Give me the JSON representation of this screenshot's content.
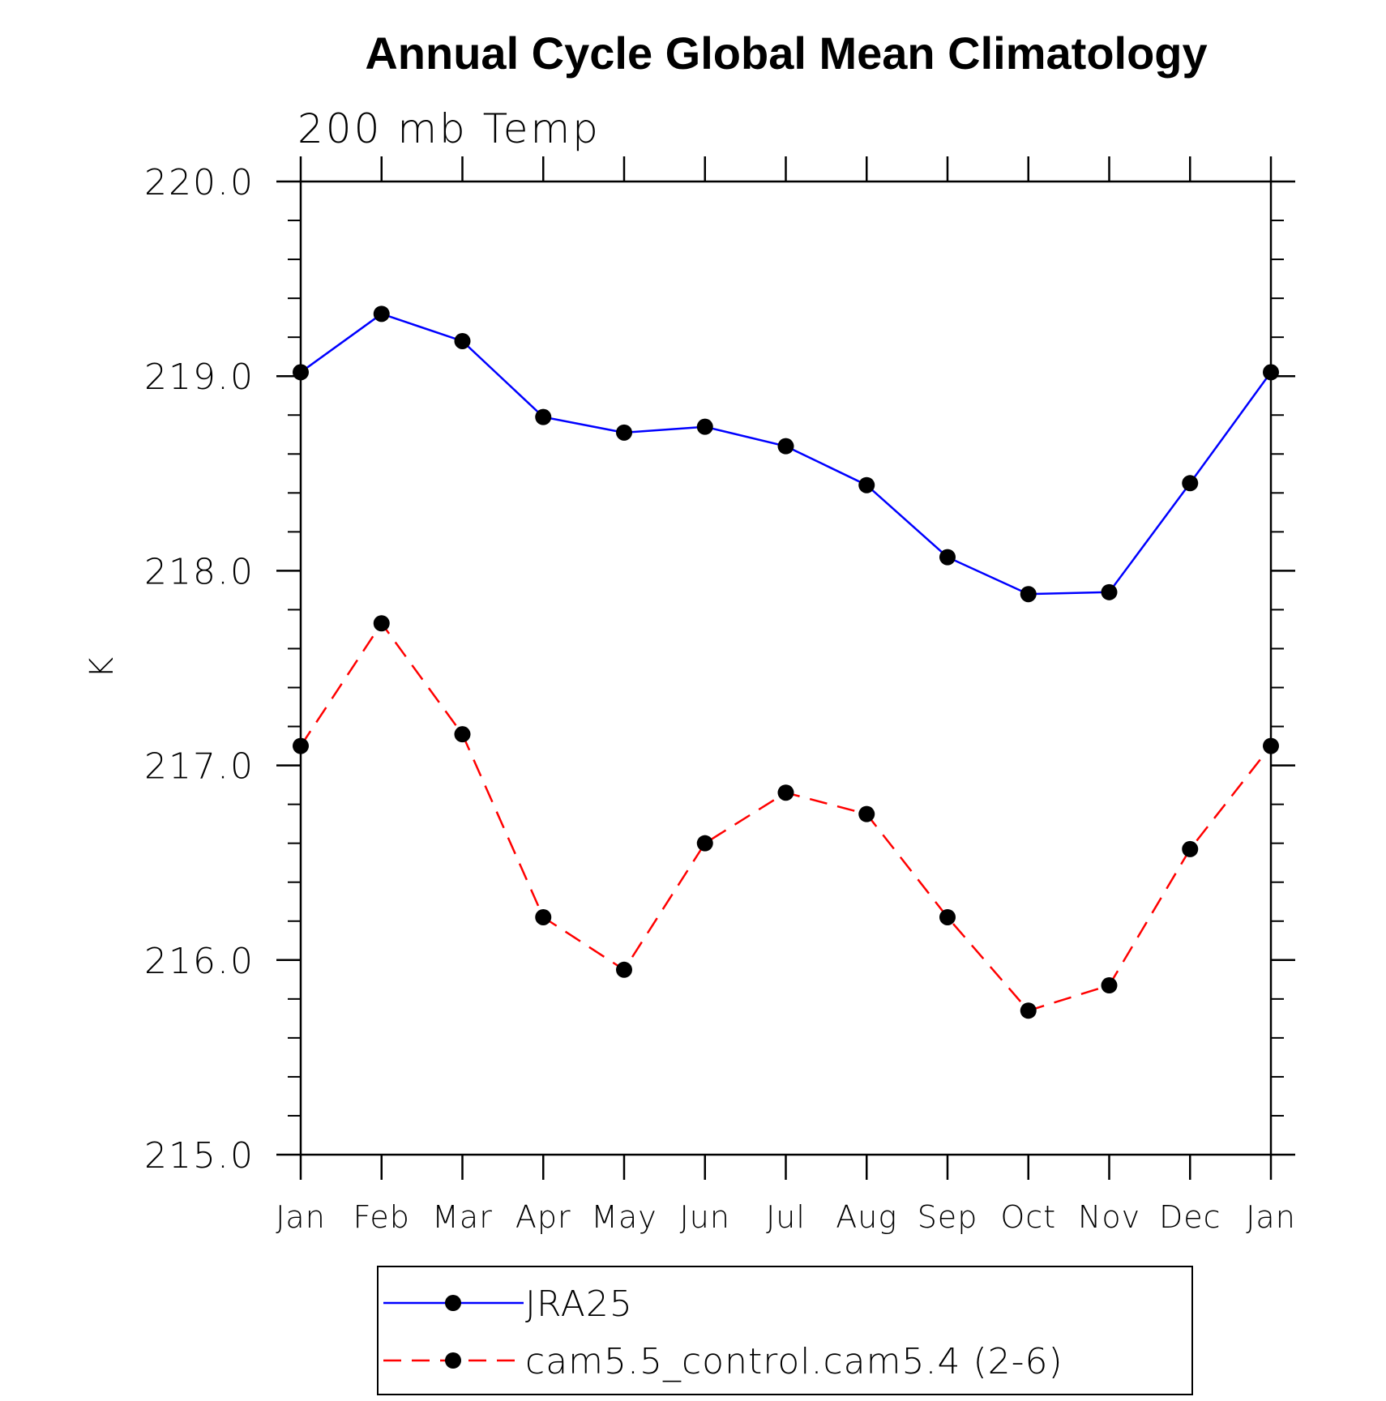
{
  "chart_data": {
    "type": "line",
    "title": "Annual Cycle Global Mean Climatology",
    "subtitle": "200 mb Temp",
    "xlabel": "",
    "ylabel": "K",
    "categories": [
      "Jan",
      "Feb",
      "Mar",
      "Apr",
      "May",
      "Jun",
      "Jul",
      "Aug",
      "Sep",
      "Oct",
      "Nov",
      "Dec",
      "Jan"
    ],
    "ylim": [
      215.0,
      220.0
    ],
    "yticks": [
      "215.0",
      "216.0",
      "217.0",
      "218.0",
      "219.0",
      "220.0"
    ],
    "yminor_step": 0.2,
    "legend_position": "bottom-center",
    "series": [
      {
        "name": "JRA25",
        "color": "#0000ff",
        "dash": "solid",
        "marker": "filled-circle",
        "values": [
          219.02,
          219.32,
          219.18,
          218.79,
          218.71,
          218.74,
          218.64,
          218.44,
          218.07,
          217.88,
          217.89,
          218.45,
          219.02
        ]
      },
      {
        "name": "cam5.5_control.cam5.4 (2-6)",
        "color": "#ff0000",
        "dash": "dashed",
        "marker": "filled-circle",
        "values": [
          217.1,
          217.73,
          217.16,
          216.22,
          215.95,
          216.6,
          216.86,
          216.75,
          216.22,
          215.74,
          215.87,
          216.57,
          217.1
        ]
      }
    ]
  }
}
